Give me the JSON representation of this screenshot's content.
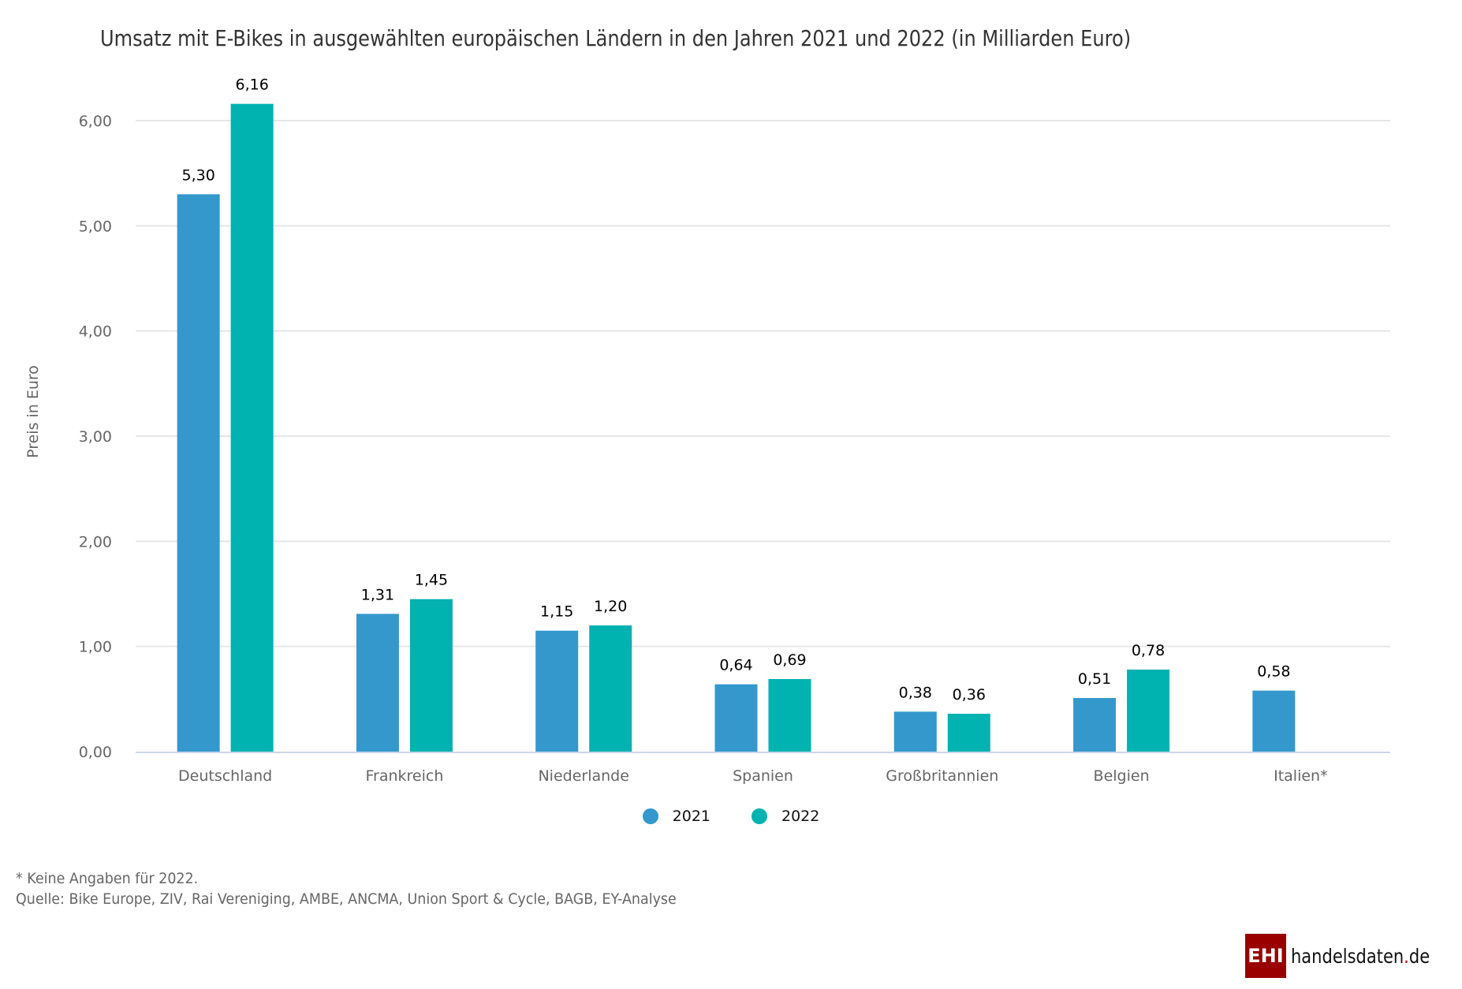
{
  "title": "Umsatz mit E-Bikes in ausgewählten europäischen Ländern in den Jahren 2021 und 2022 (in Milliarden Euro)",
  "chart_data": {
    "type": "bar",
    "title": "Umsatz mit E-Bikes in ausgewählten europäischen Ländern in den Jahren 2021 und 2022 (in Milliarden Euro)",
    "xlabel": "",
    "ylabel": "Preis in Euro",
    "ylim": [
      0,
      6.2
    ],
    "yticks": [
      0,
      1,
      2,
      3,
      4,
      5,
      6
    ],
    "ytick_labels": [
      "0,00",
      "1,00",
      "2,00",
      "3,00",
      "4,00",
      "5,00",
      "6,00"
    ],
    "grid": true,
    "legend_position": "bottom-center",
    "categories": [
      "Deutschland",
      "Frankreich",
      "Niederlande",
      "Spanien",
      "Großbritannien",
      "Belgien",
      "Italien*"
    ],
    "series": [
      {
        "name": "2021",
        "color": "#3498cc",
        "values": [
          5.3,
          1.31,
          1.15,
          0.64,
          0.38,
          0.51,
          0.58
        ],
        "labels": [
          "5,30",
          "1,31",
          "1,15",
          "0,64",
          "0,38",
          "0,51",
          "0,58"
        ]
      },
      {
        "name": "2022",
        "color": "#00b2b0",
        "values": [
          6.16,
          1.45,
          1.2,
          0.69,
          0.36,
          0.78,
          null
        ],
        "labels": [
          "6,16",
          "1,45",
          "1,20",
          "0,69",
          "0,36",
          "0,78",
          null
        ]
      }
    ]
  },
  "legend": [
    {
      "label": "2021",
      "color": "#3498cc"
    },
    {
      "label": "2022",
      "color": "#00b2b0"
    }
  ],
  "footer": {
    "note": "* Keine Angaben für 2022.",
    "source": "Quelle: Bike Europe, ZIV, Rai Vereniging, AMBE, ANCMA, Union Sport & Cycle, BAGB, EY-Analyse"
  },
  "logo": {
    "box_text": "EHI",
    "text_main": "handelsdaten",
    "text_dot": ".",
    "text_tld": "de"
  }
}
